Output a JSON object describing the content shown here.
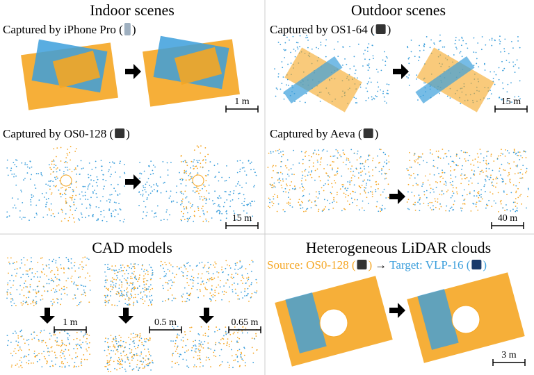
{
  "panels": [
    {
      "title": "Indoor scenes",
      "rows": [
        {
          "caption_before": "Captured by iPhone Pro (",
          "caption_after": ")",
          "scale": "1 m"
        },
        {
          "caption_before": "Captured by OS0-128 (",
          "caption_after": ")",
          "scale": "15 m"
        }
      ]
    },
    {
      "title": "Outdoor scenes",
      "rows": [
        {
          "caption_before": "Captured by OS1-64 (",
          "caption_after": ")",
          "scale": "15 m"
        },
        {
          "caption_before": "Captured by Aeva (",
          "caption_after": ")",
          "scale": "40 m"
        }
      ]
    },
    {
      "title": "CAD models",
      "scales": [
        "1 m",
        "0.5 m",
        "0.65 m"
      ]
    },
    {
      "title": "Heterogeneous LiDAR clouds",
      "source_before": "Source: OS0-128 (",
      "source_after": ")",
      "arrow": "→",
      "target_before": "Target: VLP-16 (",
      "target_after": ")",
      "scale": "3 m"
    }
  ]
}
